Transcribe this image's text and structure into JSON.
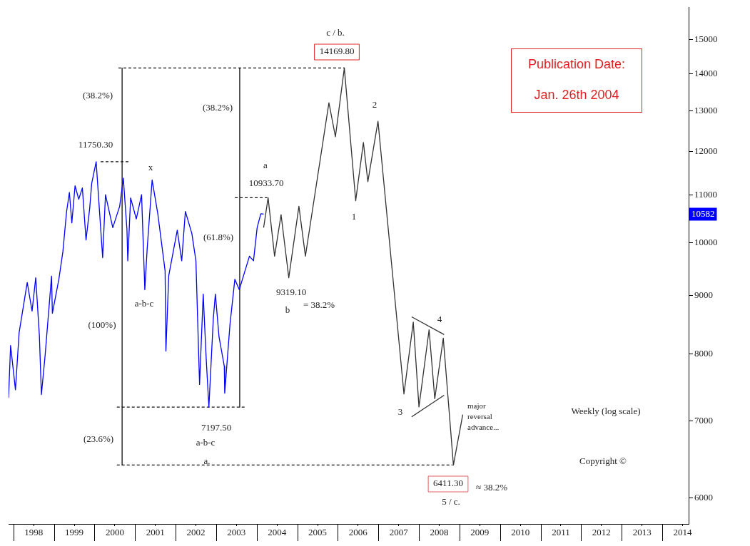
{
  "chart_data": {
    "type": "line",
    "title": "Publication Date:",
    "subtitle": "Jan. 26th 2004",
    "log": "y",
    "grid": false,
    "legend": false,
    "marker": "none",
    "xlim": [
      1997.88,
      2014.65
    ],
    "xticks": [
      {
        "value": 1998.5,
        "label": "1998"
      },
      {
        "value": 1999.5,
        "label": "1999"
      },
      {
        "value": 2000.5,
        "label": "2000"
      },
      {
        "value": 2001.5,
        "label": "2001"
      },
      {
        "value": 2002.5,
        "label": "2002"
      },
      {
        "value": 2003.5,
        "label": "2003"
      },
      {
        "value": 2004.5,
        "label": "2004"
      },
      {
        "value": 2005.5,
        "label": "2005"
      },
      {
        "value": 2006.5,
        "label": "2006"
      },
      {
        "value": 2007.5,
        "label": "2007"
      },
      {
        "value": 2008.5,
        "label": "2008"
      },
      {
        "value": 2009.5,
        "label": "2009"
      },
      {
        "value": 2010.5,
        "label": "2010"
      },
      {
        "value": 2011.5,
        "label": "2011"
      },
      {
        "value": 2012.5,
        "label": "2012"
      },
      {
        "value": 2013.5,
        "label": "2013"
      },
      {
        "value": 2014.5,
        "label": "2014"
      }
    ],
    "ylim": [
      5700,
      16000
    ],
    "yticks": [
      6000,
      7000,
      8000,
      9000,
      10000,
      11000,
      12000,
      13000,
      14000,
      15000
    ],
    "series": [
      {
        "color": "#0000ff",
        "x": [
          1997.88,
          1997.93,
          1998.05,
          1998.14,
          1998.34,
          1998.46,
          1998.55,
          1998.64,
          1998.69,
          1998.78,
          1998.94,
          1998.96,
          1999.12,
          1999.22,
          1999.31,
          1999.38,
          1999.44,
          1999.52,
          1999.61,
          1999.7,
          1999.79,
          1999.88,
          1999.93,
          2000.04,
          2000.15,
          2000.2,
          2000.27,
          2000.45,
          2000.62,
          2000.71,
          2000.8,
          2000.82,
          2000.89,
          2001.03,
          2001.16,
          2001.24,
          2001.3,
          2001.42,
          2001.56,
          2001.74,
          2001.76,
          2001.83,
          2002.04,
          2002.15,
          2002.24,
          2002.4,
          2002.5,
          2002.59,
          2002.68,
          2002.75,
          2002.82,
          2002.93,
          2002.98,
          2003.07,
          2003.2,
          2003.21,
          2003.34,
          2003.46,
          2003.57,
          2003.82,
          2003.92,
          2004.01,
          2004.1,
          2004.17
        ],
        "values": [
          7330,
          8140,
          7450,
          8350,
          9230,
          8720,
          9320,
          8300,
          7380,
          7970,
          9350,
          8680,
          9290,
          9820,
          10630,
          11050,
          10400,
          11200,
          10900,
          11150,
          10050,
          10700,
          11250,
          11750.3,
          10300,
          9700,
          11000,
          10300,
          10750,
          11370,
          10250,
          9640,
          10930,
          10480,
          11000,
          9100,
          9900,
          11330,
          10590,
          9450,
          8050,
          9360,
          10250,
          9640,
          10640,
          10180,
          9640,
          7530,
          9020,
          7970,
          7197.5,
          8600,
          9020,
          8280,
          7810,
          7400,
          8490,
          9290,
          9100,
          9730,
          9640,
          10300,
          10590,
          10582
        ]
      },
      {
        "color": "#333333",
        "x": [
          2004.17,
          2004.28,
          2004.44,
          2004.6,
          2004.79,
          2005.04,
          2005.2,
          2005.78,
          2005.94,
          2006.16,
          2006.44,
          2006.63,
          2006.74,
          2006.99,
          2007.63,
          2007.86,
          2008.0,
          2008.25,
          2008.39,
          2008.6,
          2008.85,
          2009.08
        ],
        "values": [
          10300,
          10933.7,
          9730,
          10570,
          9319.1,
          10750,
          9730,
          13220,
          12350,
          14169.8,
          10870,
          12210,
          11290,
          12740,
          7390,
          8530,
          7200,
          8400,
          7320,
          8260,
          6411.3,
          7090
        ]
      },
      {
        "color": "#333333",
        "x": [
          2007.82,
          2008.62
        ],
        "values": [
          8620,
          8320
        ]
      },
      {
        "color": "#333333",
        "x": [
          2007.82,
          2008.62
        ],
        "values": [
          7060,
          7370
        ]
      },
      {
        "color": "#111111",
        "x": [
          2000.68,
          2000.68
        ],
        "values": [
          14169.8,
          6411.3
        ]
      },
      {
        "color": "#111111",
        "x": [
          2003.58,
          2003.58
        ],
        "values": [
          14169.8,
          7197.5
        ]
      },
      {
        "color": "#111111",
        "line_style": "dashed",
        "x": [
          2000.59,
          2006.17
        ],
        "values": [
          14169.8,
          14169.8
        ]
      },
      {
        "color": "#111111",
        "line_style": "dashed",
        "x": [
          2000.15,
          2000.85
        ],
        "values": [
          11750.3,
          11750.3
        ]
      },
      {
        "color": "#111111",
        "line_style": "dashed",
        "x": [
          2003.46,
          2004.26
        ],
        "values": [
          10933.7,
          10933.7
        ]
      },
      {
        "color": "#111111",
        "line_style": "dashed",
        "x": [
          2000.55,
          2003.74
        ],
        "values": [
          7197.5,
          7197.5
        ]
      },
      {
        "color": "#111111",
        "line_style": "dashed",
        "x": [
          2000.55,
          2008.83
        ],
        "values": [
          6411.3,
          6411.3
        ]
      }
    ],
    "annotations": [
      "c / b.",
      "14169.80",
      "(38.2%)",
      "11750.30",
      "x",
      "a-b-c",
      "(100%)",
      "(23.6%)",
      "a.",
      "7197.50",
      "a-b-c",
      "(38.2%)",
      "(61.8%)",
      "a",
      "10933.70",
      "9319.10",
      "b",
      "= 38.2%",
      "1",
      "2",
      "4",
      "3",
      "major reversal advance...",
      "6411.30",
      "≈ 38.2%",
      "5 / c.",
      "Weekly (log scale)",
      "Copyright ©",
      {
        "text": "10582",
        "y": 10582
      }
    ]
  }
}
